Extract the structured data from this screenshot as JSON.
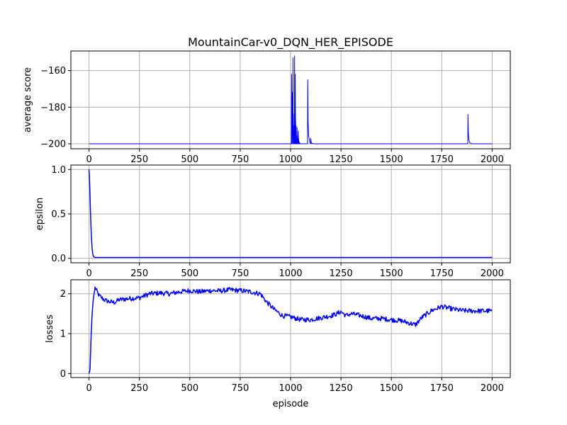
{
  "chart_data": {
    "title": "MountainCar-v0_DQN_HER_EPISODE",
    "xlabel": "episode",
    "x_ticks": [
      0,
      250,
      500,
      750,
      1000,
      1250,
      1500,
      1750,
      2000
    ],
    "x_tick_labels": [
      "0",
      "250",
      "500",
      "750",
      "1000",
      "1250",
      "1500",
      "1750",
      "2000"
    ],
    "xlim": [
      -90,
      2090
    ],
    "line_color": "#0000ff",
    "grid": true,
    "panels": [
      {
        "type": "line",
        "ylabel": "average score",
        "ylim": [
          -202.7,
          -149.3
        ],
        "y_ticks": [
          -200,
          -180,
          -160
        ],
        "y_tick_labels": [
          "−200",
          "−180",
          "−160"
        ],
        "line_width": 1,
        "base": -200,
        "spikes": [
          {
            "x": 1005,
            "y": -162
          },
          {
            "x": 1008,
            "y": -172
          },
          {
            "x": 1012,
            "y": -153
          },
          {
            "x": 1016,
            "y": -190
          },
          {
            "x": 1020,
            "y": -152
          },
          {
            "x": 1023,
            "y": -162
          },
          {
            "x": 1027,
            "y": -190
          },
          {
            "x": 1032,
            "y": -191
          },
          {
            "x": 1038,
            "y": -193
          },
          {
            "x": 1085,
            "y": -165
          },
          {
            "x": 1100,
            "y": -197
          },
          {
            "x": 1880,
            "y": -184
          }
        ],
        "x_range": [
          0,
          2000
        ]
      },
      {
        "type": "line",
        "ylabel": "epsilon",
        "ylim": [
          -0.05,
          1.05
        ],
        "y_ticks": [
          0.0,
          0.5,
          1.0
        ],
        "y_tick_labels": [
          "0.0",
          "0.5",
          "1.0"
        ],
        "line_width": 1.5,
        "points": [
          [
            0,
            1.0
          ],
          [
            2,
            0.9
          ],
          [
            4,
            0.78
          ],
          [
            6,
            0.62
          ],
          [
            8,
            0.47
          ],
          [
            10,
            0.34
          ],
          [
            12,
            0.24
          ],
          [
            14,
            0.16
          ],
          [
            16,
            0.1
          ],
          [
            18,
            0.06
          ],
          [
            20,
            0.035
          ],
          [
            24,
            0.015
          ],
          [
            30,
            0.01
          ],
          [
            2000,
            0.01
          ]
        ]
      },
      {
        "type": "line",
        "ylabel": "losses",
        "ylim": [
          -0.1,
          2.35
        ],
        "y_ticks": [
          0,
          1,
          2
        ],
        "y_tick_labels": [
          "0",
          "1",
          "2"
        ],
        "line_width": 1.5,
        "points": [
          [
            0,
            0.0
          ],
          [
            5,
            0.1
          ],
          [
            10,
            0.9
          ],
          [
            15,
            1.45
          ],
          [
            20,
            1.8
          ],
          [
            25,
            2.0
          ],
          [
            30,
            2.15
          ],
          [
            35,
            2.1
          ],
          [
            50,
            1.95
          ],
          [
            75,
            1.85
          ],
          [
            100,
            1.8
          ],
          [
            125,
            1.78
          ],
          [
            150,
            1.85
          ],
          [
            200,
            1.88
          ],
          [
            250,
            1.9
          ],
          [
            300,
            2.0
          ],
          [
            350,
            2.02
          ],
          [
            400,
            2.0
          ],
          [
            450,
            2.05
          ],
          [
            500,
            2.08
          ],
          [
            550,
            2.05
          ],
          [
            600,
            2.08
          ],
          [
            650,
            2.07
          ],
          [
            700,
            2.1
          ],
          [
            750,
            2.08
          ],
          [
            800,
            2.05
          ],
          [
            850,
            2.0
          ],
          [
            880,
            1.8
          ],
          [
            920,
            1.6
          ],
          [
            960,
            1.45
          ],
          [
            1000,
            1.42
          ],
          [
            1050,
            1.35
          ],
          [
            1100,
            1.35
          ],
          [
            1150,
            1.4
          ],
          [
            1200,
            1.45
          ],
          [
            1230,
            1.5
          ],
          [
            1250,
            1.55
          ],
          [
            1275,
            1.45
          ],
          [
            1300,
            1.5
          ],
          [
            1350,
            1.45
          ],
          [
            1400,
            1.38
          ],
          [
            1450,
            1.38
          ],
          [
            1500,
            1.35
          ],
          [
            1550,
            1.32
          ],
          [
            1600,
            1.25
          ],
          [
            1620,
            1.22
          ],
          [
            1650,
            1.4
          ],
          [
            1700,
            1.58
          ],
          [
            1750,
            1.68
          ],
          [
            1800,
            1.62
          ],
          [
            1850,
            1.58
          ],
          [
            1900,
            1.57
          ],
          [
            1950,
            1.57
          ],
          [
            2000,
            1.57
          ]
        ],
        "noise": 0.06
      }
    ]
  }
}
